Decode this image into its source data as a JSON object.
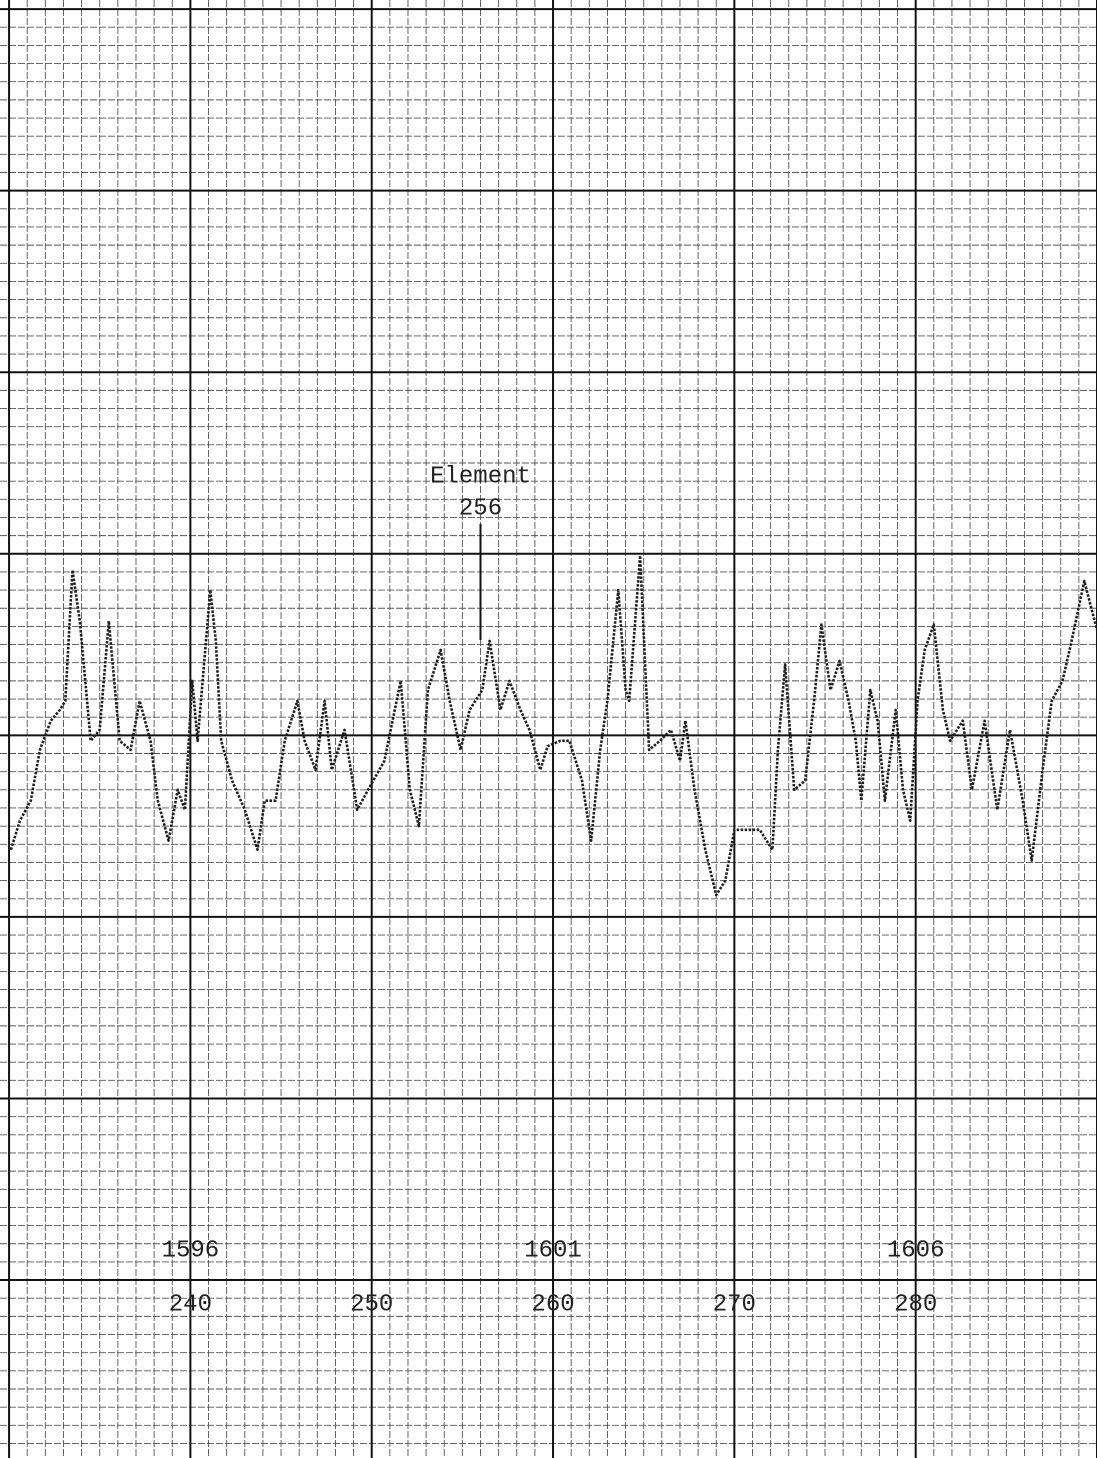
{
  "chart_data": {
    "type": "line",
    "annotation": {
      "lines": [
        "Element",
        "256"
      ],
      "x": 256
    },
    "xlim": [
      229.5,
      290
    ],
    "ylim": [
      -39.8,
      40.5
    ],
    "xticks": [
      240,
      250,
      260,
      270,
      280
    ],
    "x2ticks": [
      {
        "value": 240,
        "label": "1596"
      },
      {
        "value": 260,
        "label": "1601"
      },
      {
        "value": 280,
        "label": "1606"
      }
    ],
    "grid": true,
    "series": [
      {
        "color": "#1e1e1e",
        "x": [
          230.1,
          230.6,
          231.2,
          231.7,
          232.3,
          232.8,
          233.1,
          233.5,
          233.9,
          234.5,
          235.0,
          235.5,
          235.8,
          236.1,
          236.7,
          237.2,
          237.8,
          238.2,
          238.8,
          239.3,
          239.7,
          240.1,
          240.4,
          241.1,
          241.4,
          241.7,
          242.3,
          243.0,
          243.7,
          244.1,
          244.7,
          245.2,
          245.9,
          246.3,
          246.9,
          247.4,
          247.8,
          248.5,
          249.2,
          249.8,
          250.7,
          251.6,
          252.1,
          252.6,
          253.1,
          253.8,
          254.3,
          254.9,
          255.4,
          256.1,
          256.5,
          257.1,
          257.6,
          258.2,
          258.7,
          259.3,
          259.7,
          260.4,
          260.9,
          261.6,
          262.1,
          262.6,
          263.0,
          263.6,
          264.0,
          264.2,
          264.8,
          265.3,
          265.9,
          266.5,
          267.0,
          267.3,
          267.8,
          268.4,
          269.0,
          269.5,
          270.0,
          270.6,
          271.4,
          272.1,
          272.4,
          272.8,
          273.3,
          273.9,
          274.4,
          274.8,
          275.3,
          275.8,
          276.3,
          276.7,
          277.0,
          277.5,
          277.9,
          278.3,
          278.9,
          279.3,
          279.7,
          280.1,
          280.5,
          281.0,
          281.5,
          281.9,
          282.6,
          283.1,
          283.8,
          284.5,
          285.2,
          285.9,
          286.4,
          287.0,
          287.5,
          288.1,
          288.6,
          289.3,
          290.0
        ],
        "values": [
          -6.3,
          -4.7,
          -3.6,
          -0.8,
          0.8,
          1.4,
          1.9,
          9.1,
          6.3,
          -0.3,
          0.3,
          6.3,
          3.0,
          -0.3,
          -0.8,
          1.9,
          -0.3,
          -3.6,
          -5.8,
          -3.0,
          -4.1,
          3.0,
          -0.3,
          8.0,
          5.2,
          -0.3,
          -2.5,
          -4.1,
          -6.3,
          -3.6,
          -3.6,
          -0.3,
          1.9,
          -0.3,
          -1.9,
          1.9,
          -1.9,
          0.3,
          -4.1,
          -3.0,
          -1.4,
          3.0,
          -3.0,
          -5.0,
          2.5,
          4.7,
          1.9,
          -0.8,
          1.4,
          2.5,
          5.2,
          1.4,
          3.0,
          1.4,
          0.3,
          -1.9,
          -0.6,
          -0.3,
          -0.3,
          -2.5,
          -5.8,
          -0.8,
          1.9,
          8.0,
          2.5,
          1.9,
          9.9,
          -0.8,
          -0.3,
          0.3,
          -1.4,
          0.8,
          -3.0,
          -6.3,
          -8.8,
          -8.0,
          -5.2,
          -5.2,
          -5.2,
          -6.3,
          -0.8,
          3.9,
          -3.0,
          -2.5,
          1.9,
          6.1,
          2.5,
          4.1,
          1.9,
          -0.3,
          -3.6,
          2.5,
          0.8,
          -3.6,
          1.4,
          -3.0,
          -4.7,
          1.9,
          4.7,
          6.1,
          1.4,
          -0.3,
          0.8,
          -3.0,
          0.8,
          -4.1,
          0.3,
          -3.6,
          -6.9,
          -1.9,
          1.9,
          3.0,
          5.2,
          8.5,
          5.8
        ]
      }
    ]
  }
}
